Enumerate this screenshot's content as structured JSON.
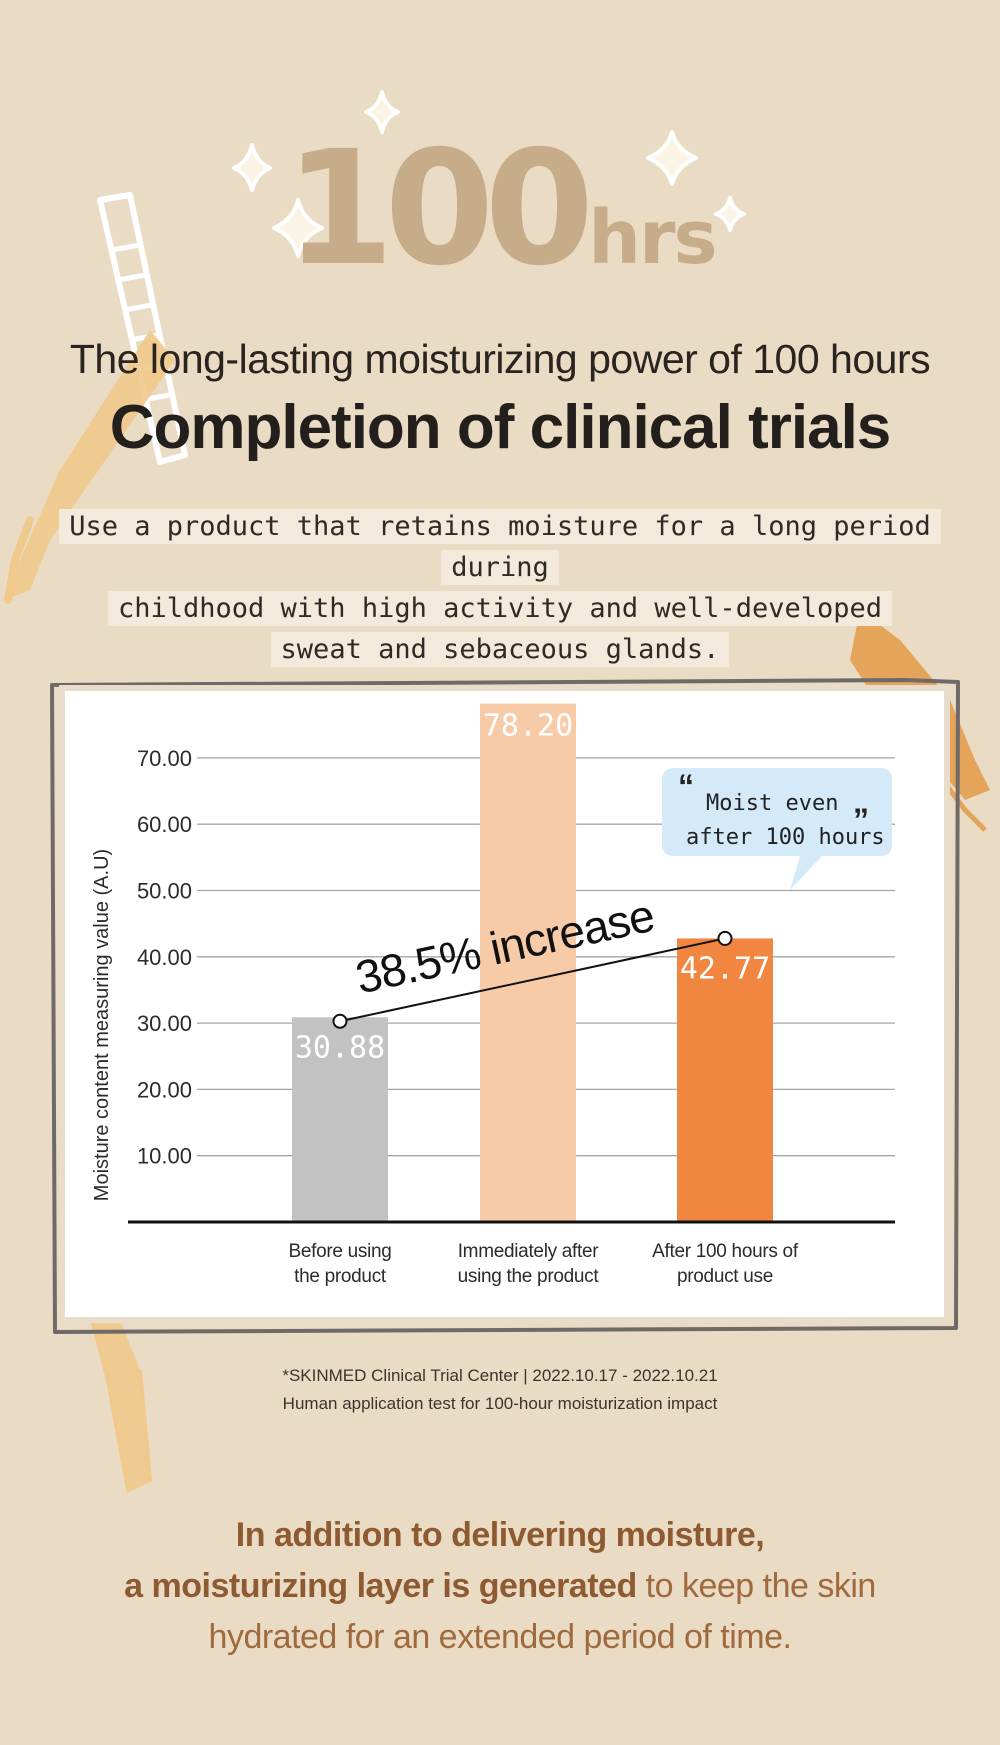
{
  "hero": {
    "number": "100",
    "unit": "hrs"
  },
  "subtitle": "The long-lasting moisturizing power of 100 hours",
  "title": "Completion of clinical trials",
  "description": [
    "Use a product that retains moisture for a long period during",
    "childhood with high activity and well-developed",
    "sweat and sebaceous glands."
  ],
  "chart_data": {
    "type": "bar",
    "ylabel": "Moisture content measuring value (A.U)",
    "yticks": [
      "10.00",
      "20.00",
      "30.00",
      "40.00",
      "50.00",
      "60.00",
      "70.00"
    ],
    "ylim": [
      0,
      78.2
    ],
    "categories": [
      [
        "Before using",
        "the product"
      ],
      [
        "Immediately after",
        "using the product"
      ],
      [
        "After 100 hours of",
        "product use"
      ]
    ],
    "values": [
      30.88,
      78.2,
      42.77
    ],
    "value_labels": [
      "30.88",
      "78.20",
      "42.77"
    ],
    "colors": [
      "#c2c2c2",
      "#f8cba8",
      "#f0863f"
    ],
    "increase_label": "38.5% increase",
    "callout": [
      "Moist even",
      "after 100 hours"
    ],
    "callout_color": "#d4eaf9",
    "grid": true
  },
  "footnote": [
    "*SKINMED Clinical Trial Center | 2022.10.17 - 2022.10.21",
    "Human application test for 100-hour moisturization impact"
  ],
  "closing": {
    "line1": "In addition to delivering moisture,",
    "line2_bold": "a moisturizing layer is generated",
    "line2_rest": " to keep the skin",
    "line3": "hydrated for an extended period of time."
  }
}
